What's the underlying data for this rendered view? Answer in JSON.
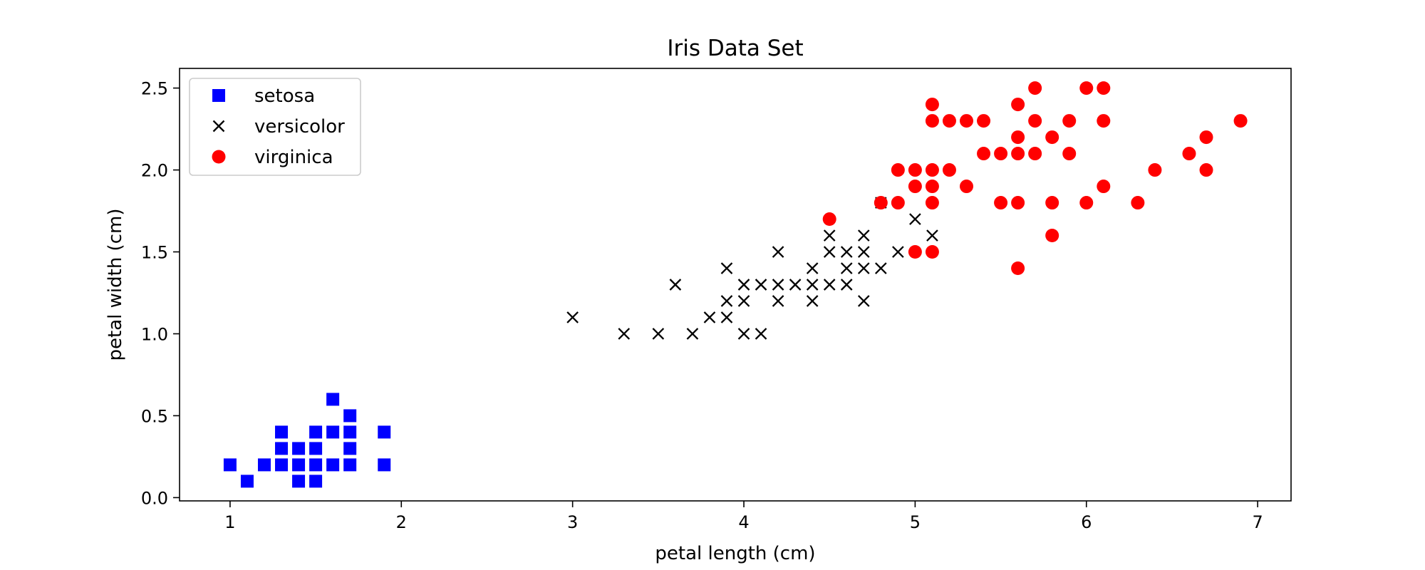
{
  "chart_data": {
    "type": "scatter",
    "title": "Iris Data Set",
    "xlabel": "petal length (cm)",
    "ylabel": "petal width (cm)",
    "xlim": [
      0.705,
      7.195
    ],
    "ylim": [
      -0.02,
      2.62
    ],
    "xticks": [
      1,
      2,
      3,
      4,
      5,
      6,
      7
    ],
    "xtick_labels": [
      "1",
      "2",
      "3",
      "4",
      "5",
      "6",
      "7"
    ],
    "yticks": [
      0.0,
      0.5,
      1.0,
      1.5,
      2.0,
      2.5
    ],
    "ytick_labels": [
      "0.0",
      "0.5",
      "1.0",
      "1.5",
      "2.0",
      "2.5"
    ],
    "grid": false,
    "legend_position": "top-left",
    "series": [
      {
        "name": "setosa",
        "marker": "square",
        "color": "#0000ff",
        "points": [
          [
            1.0,
            0.2
          ],
          [
            1.1,
            0.1
          ],
          [
            1.2,
            0.2
          ],
          [
            1.3,
            0.2
          ],
          [
            1.3,
            0.3
          ],
          [
            1.3,
            0.4
          ],
          [
            1.4,
            0.1
          ],
          [
            1.4,
            0.2
          ],
          [
            1.4,
            0.3
          ],
          [
            1.5,
            0.1
          ],
          [
            1.5,
            0.2
          ],
          [
            1.5,
            0.3
          ],
          [
            1.5,
            0.4
          ],
          [
            1.6,
            0.2
          ],
          [
            1.6,
            0.4
          ],
          [
            1.6,
            0.6
          ],
          [
            1.7,
            0.2
          ],
          [
            1.7,
            0.3
          ],
          [
            1.7,
            0.4
          ],
          [
            1.7,
            0.5
          ],
          [
            1.9,
            0.2
          ],
          [
            1.9,
            0.4
          ]
        ]
      },
      {
        "name": "versicolor",
        "marker": "x",
        "color": "#000000",
        "points": [
          [
            3.0,
            1.1
          ],
          [
            3.3,
            1.0
          ],
          [
            3.5,
            1.0
          ],
          [
            3.6,
            1.3
          ],
          [
            3.7,
            1.0
          ],
          [
            3.8,
            1.1
          ],
          [
            3.9,
            1.1
          ],
          [
            3.9,
            1.2
          ],
          [
            3.9,
            1.4
          ],
          [
            4.0,
            1.0
          ],
          [
            4.0,
            1.2
          ],
          [
            4.0,
            1.3
          ],
          [
            4.1,
            1.0
          ],
          [
            4.1,
            1.3
          ],
          [
            4.2,
            1.2
          ],
          [
            4.2,
            1.3
          ],
          [
            4.2,
            1.5
          ],
          [
            4.3,
            1.3
          ],
          [
            4.4,
            1.2
          ],
          [
            4.4,
            1.3
          ],
          [
            4.4,
            1.4
          ],
          [
            4.5,
            1.3
          ],
          [
            4.5,
            1.5
          ],
          [
            4.5,
            1.6
          ],
          [
            4.6,
            1.3
          ],
          [
            4.6,
            1.4
          ],
          [
            4.6,
            1.5
          ],
          [
            4.7,
            1.2
          ],
          [
            4.7,
            1.4
          ],
          [
            4.7,
            1.5
          ],
          [
            4.7,
            1.6
          ],
          [
            4.8,
            1.4
          ],
          [
            4.8,
            1.8
          ],
          [
            4.9,
            1.5
          ],
          [
            5.0,
            1.7
          ],
          [
            5.1,
            1.6
          ]
        ]
      },
      {
        "name": "virginica",
        "marker": "circle",
        "color": "#ff0000",
        "points": [
          [
            4.5,
            1.7
          ],
          [
            4.8,
            1.8
          ],
          [
            4.9,
            1.8
          ],
          [
            4.9,
            2.0
          ],
          [
            5.0,
            1.5
          ],
          [
            5.0,
            1.9
          ],
          [
            5.0,
            2.0
          ],
          [
            5.1,
            1.5
          ],
          [
            5.1,
            1.8
          ],
          [
            5.1,
            1.9
          ],
          [
            5.1,
            2.0
          ],
          [
            5.1,
            2.3
          ],
          [
            5.1,
            2.4
          ],
          [
            5.2,
            2.0
          ],
          [
            5.2,
            2.3
          ],
          [
            5.3,
            1.9
          ],
          [
            5.3,
            2.3
          ],
          [
            5.4,
            2.1
          ],
          [
            5.4,
            2.3
          ],
          [
            5.5,
            1.8
          ],
          [
            5.5,
            2.1
          ],
          [
            5.6,
            1.4
          ],
          [
            5.6,
            1.8
          ],
          [
            5.6,
            2.1
          ],
          [
            5.6,
            2.2
          ],
          [
            5.6,
            2.4
          ],
          [
            5.7,
            2.1
          ],
          [
            5.7,
            2.3
          ],
          [
            5.7,
            2.5
          ],
          [
            5.8,
            1.6
          ],
          [
            5.8,
            1.8
          ],
          [
            5.8,
            2.2
          ],
          [
            5.9,
            2.1
          ],
          [
            5.9,
            2.3
          ],
          [
            6.0,
            1.8
          ],
          [
            6.0,
            2.5
          ],
          [
            6.1,
            1.9
          ],
          [
            6.1,
            2.3
          ],
          [
            6.1,
            2.5
          ],
          [
            6.3,
            1.8
          ],
          [
            6.4,
            2.0
          ],
          [
            6.6,
            2.1
          ],
          [
            6.7,
            2.0
          ],
          [
            6.7,
            2.2
          ],
          [
            6.9,
            2.3
          ]
        ]
      }
    ]
  }
}
